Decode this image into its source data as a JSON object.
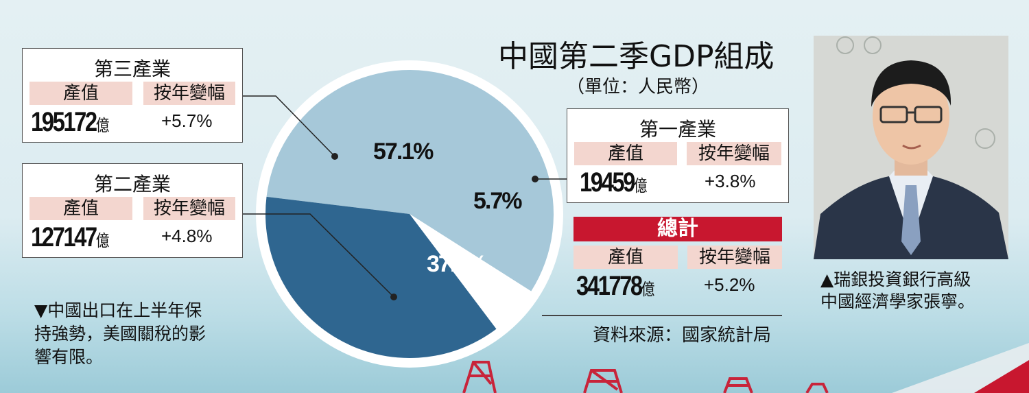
{
  "colors": {
    "primary": "#a6c8d9",
    "secondary": "#2f6690",
    "tertiary": "#ffffff",
    "label_bg": "#f3d6cf",
    "total_red": "#c8172f"
  },
  "header": {
    "title": "中國第二季GDP組成",
    "unit": "（單位：人民幣）"
  },
  "labels": {
    "value": "產值",
    "change": "按年變幅",
    "unit_yi": "億"
  },
  "sectors": [
    {
      "name": "第三產業",
      "value": "195172",
      "change": "+5.7%"
    },
    {
      "name": "第二產業",
      "value": "127147",
      "change": "+4.8%"
    },
    {
      "name": "第一產業",
      "value": "19459",
      "change": "+3.8%"
    }
  ],
  "total": {
    "name": "總計",
    "value": "341778",
    "change": "+5.2%"
  },
  "source": "資料來源：國家統計局",
  "photo_caption": [
    "▲瑞銀投資銀行高級",
    "中國經濟學家張寧。"
  ],
  "bg_caption": [
    "▼中國出口在上半年保",
    "持強勢，美國關稅的影",
    "響有限。"
  ],
  "chart_data": {
    "type": "pie",
    "title": "中國第二季GDP組成",
    "subtitle": "（單位：人民幣）",
    "slices": [
      {
        "label": "第三產業",
        "value": 57.1,
        "display": "57.1%",
        "color": "#a6c8d9",
        "text_color": "#111111"
      },
      {
        "label": "第一產業",
        "value": 5.7,
        "display": "5.7%",
        "color": "#ffffff",
        "text_color": "#111111"
      },
      {
        "label": "第二產業",
        "value": 37.2,
        "display": "37.2%",
        "color": "#2f6690",
        "text_color": "#ffffff"
      }
    ]
  }
}
